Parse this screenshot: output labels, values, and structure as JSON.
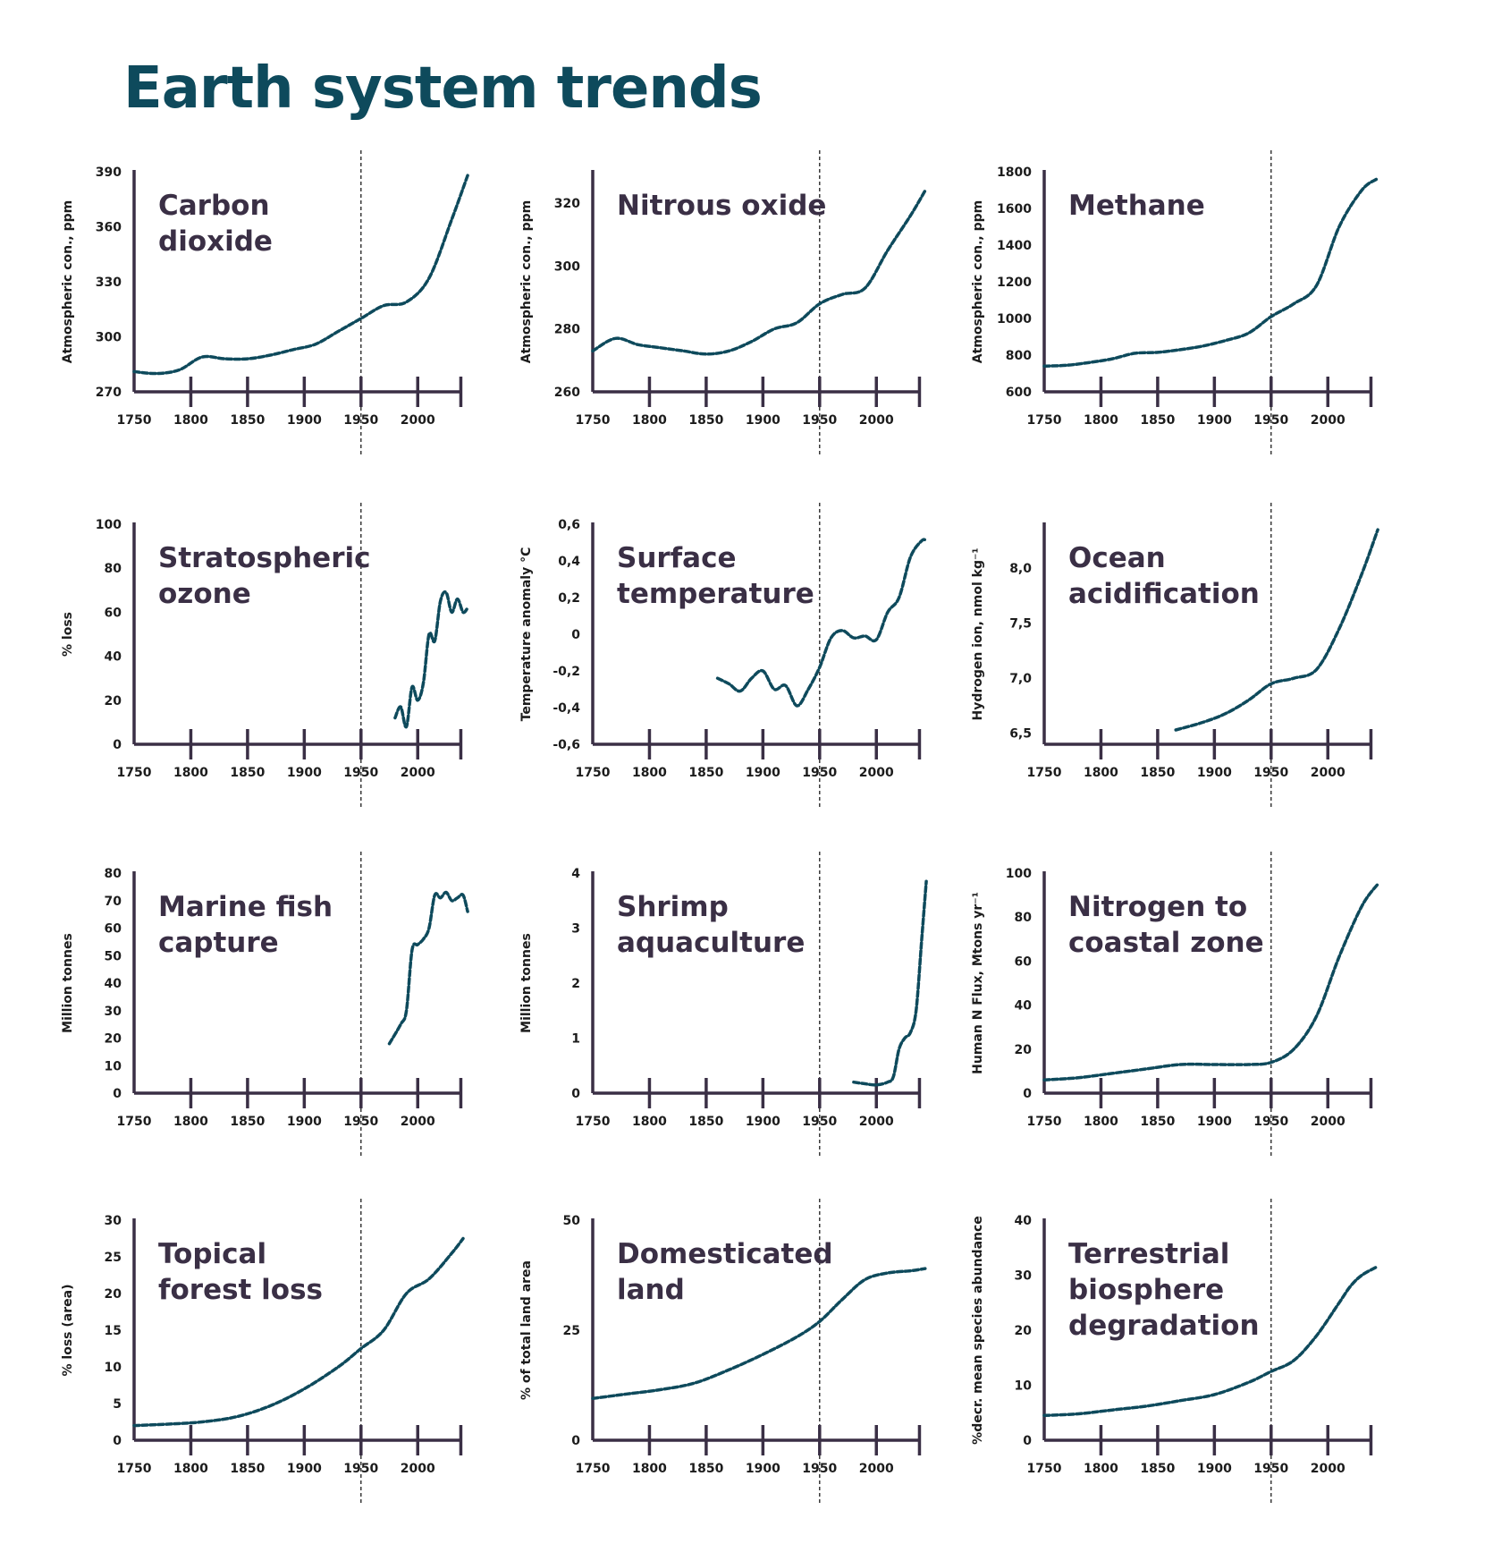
{
  "title": "Earth system trends",
  "colors": {
    "title": "#0e4a5c",
    "line": "#0e4a5c",
    "axis": "#3a2f45",
    "panel_title": "#3a2f45",
    "marker": "#1c1c1c"
  },
  "x_ticks": [
    1750,
    1800,
    1850,
    1900,
    1950,
    2000
  ],
  "marker_year": 1950,
  "chart_data": [
    {
      "type": "line",
      "title": [
        "Carbon",
        "dioxide"
      ],
      "ylabel": "Atmospheric con., ppm",
      "ylim": [
        270,
        390
      ],
      "yticks": [
        270,
        300,
        330,
        360,
        390
      ],
      "ytick_labels": [
        "270",
        "300",
        "330",
        "360",
        "390"
      ],
      "xlim": [
        1750,
        2040
      ],
      "x": [
        1750,
        1770,
        1790,
        1810,
        1830,
        1850,
        1870,
        1890,
        1910,
        1930,
        1950,
        1970,
        1990,
        2010,
        2030,
        2044
      ],
      "y": [
        281,
        280,
        282,
        289,
        288,
        288,
        290,
        293,
        296,
        303,
        310,
        317,
        319,
        332,
        364,
        388
      ]
    },
    {
      "type": "line",
      "title": [
        "Nitrous oxide"
      ],
      "ylabel": "Atmospheric con., ppm",
      "ylim": [
        260,
        330
      ],
      "yticks": [
        260,
        280,
        300,
        320
      ],
      "ytick_labels": [
        "260",
        "280",
        "300",
        "320"
      ],
      "xlim": [
        1750,
        2040
      ],
      "x": [
        1750,
        1770,
        1790,
        1810,
        1830,
        1850,
        1870,
        1890,
        1910,
        1930,
        1950,
        1970,
        1990,
        2010,
        2030,
        2043
      ],
      "y": [
        273,
        277,
        275,
        274,
        273,
        272,
        273,
        276,
        280,
        282,
        288,
        291,
        293,
        305,
        316,
        324
      ]
    },
    {
      "type": "line",
      "title": [
        "Methane"
      ],
      "ylabel": "Atmospheric con., ppm",
      "ylim": [
        600,
        1800
      ],
      "yticks": [
        600,
        800,
        1000,
        1200,
        1400,
        1600,
        1800
      ],
      "ytick_labels": [
        "600",
        "800",
        "1000",
        "1200",
        "1400",
        "1600",
        "1800"
      ],
      "xlim": [
        1750,
        2040
      ],
      "x": [
        1750,
        1770,
        1790,
        1810,
        1830,
        1850,
        1870,
        1890,
        1910,
        1930,
        1950,
        1970,
        1990,
        2010,
        2030,
        2043
      ],
      "y": [
        740,
        745,
        760,
        780,
        810,
        815,
        830,
        850,
        880,
        920,
        1010,
        1080,
        1180,
        1500,
        1700,
        1760
      ]
    },
    {
      "type": "line",
      "title": [
        "Stratospheric",
        "ozone"
      ],
      "ylabel": "% loss",
      "ylim": [
        0,
        100
      ],
      "yticks": [
        0,
        20,
        40,
        60,
        80,
        100
      ],
      "ytick_labels": [
        "0",
        "20",
        "40",
        "60",
        "80",
        "100"
      ],
      "xlim": [
        1750,
        2040
      ],
      "x": [
        1980,
        1985,
        1990,
        1995,
        2000,
        2005,
        2010,
        2015,
        2020,
        2025,
        2030,
        2035,
        2040,
        2044
      ],
      "y": [
        12,
        17,
        8,
        26,
        20,
        28,
        50,
        47,
        65,
        69,
        60,
        66,
        60,
        62
      ]
    },
    {
      "type": "line",
      "title": [
        "Surface",
        "temperature"
      ],
      "ylabel": "Temperature anomaly °C",
      "ylim": [
        -0.6,
        0.6
      ],
      "yticks": [
        -0.6,
        -0.4,
        -0.2,
        0,
        0.2,
        0.4,
        0.6
      ],
      "ytick_labels": [
        "-0,6",
        "-0,4",
        "-0,2",
        "0",
        "0,2",
        "0,4",
        "0,6"
      ],
      "xlim": [
        1750,
        2040
      ],
      "x": [
        1860,
        1870,
        1880,
        1890,
        1900,
        1910,
        1920,
        1930,
        1940,
        1950,
        1960,
        1970,
        1980,
        1990,
        2000,
        2010,
        2020,
        2030,
        2040,
        2044
      ],
      "y": [
        -0.24,
        -0.27,
        -0.31,
        -0.24,
        -0.2,
        -0.3,
        -0.28,
        -0.39,
        -0.3,
        -0.18,
        -0.02,
        0.02,
        -0.02,
        -0.01,
        -0.03,
        0.12,
        0.2,
        0.42,
        0.51,
        0.51
      ]
    },
    {
      "type": "line",
      "title": [
        "Ocean",
        "acidification"
      ],
      "ylabel": "Hydrogen ion, nmol kg⁻¹",
      "ylim": [
        6.4,
        8.4
      ],
      "yticks": [
        6.5,
        7.0,
        7.5,
        8.0
      ],
      "ytick_labels": [
        "6,5",
        "7,0",
        "7,5",
        "8,0"
      ],
      "xlim": [
        1750,
        2040
      ],
      "x": [
        1866,
        1890,
        1910,
        1930,
        1950,
        1970,
        1990,
        2010,
        2030,
        2044
      ],
      "y": [
        6.53,
        6.6,
        6.68,
        6.8,
        6.95,
        7.0,
        7.08,
        7.45,
        7.95,
        8.35
      ]
    },
    {
      "type": "line",
      "title": [
        "Marine fish",
        "capture"
      ],
      "ylabel": "Million tonnes",
      "ylim": [
        0,
        80
      ],
      "yticks": [
        0,
        10,
        20,
        30,
        40,
        50,
        60,
        70,
        80
      ],
      "ytick_labels": [
        "0",
        "10",
        "20",
        "30",
        "40",
        "50",
        "60",
        "70",
        "80"
      ],
      "xlim": [
        1750,
        2040
      ],
      "x": [
        1975,
        1985,
        1990,
        1995,
        2000,
        2005,
        2010,
        2015,
        2020,
        2025,
        2030,
        2035,
        2040,
        2044
      ],
      "y": [
        18,
        25,
        30,
        52,
        54,
        56,
        60,
        72,
        71,
        73,
        70,
        71,
        72,
        66
      ]
    },
    {
      "type": "line",
      "title": [
        "Shrimp",
        "aquaculture"
      ],
      "ylabel": "Million tonnes",
      "ylim": [
        0,
        4
      ],
      "yticks": [
        0,
        1,
        2,
        3,
        4
      ],
      "ytick_labels": [
        "0",
        "1",
        "2",
        "3",
        "4"
      ],
      "xlim": [
        1750,
        2040
      ],
      "x": [
        1980,
        1990,
        2000,
        2010,
        2015,
        2020,
        2025,
        2030,
        2035,
        2040,
        2044
      ],
      "y": [
        0.2,
        0.17,
        0.15,
        0.2,
        0.3,
        0.8,
        1.0,
        1.1,
        1.5,
        2.8,
        3.85
      ]
    },
    {
      "type": "line",
      "title": [
        "Nitrogen to",
        "coastal zone"
      ],
      "ylabel": "Human N Flux, Mtons yr⁻¹",
      "ylim": [
        0,
        100
      ],
      "yticks": [
        0,
        20,
        40,
        60,
        80,
        100
      ],
      "ytick_labels": [
        "0",
        "20",
        "40",
        "60",
        "80",
        "100"
      ],
      "xlim": [
        1750,
        2040
      ],
      "x": [
        1750,
        1780,
        1810,
        1840,
        1870,
        1900,
        1930,
        1950,
        1970,
        1990,
        2010,
        2030,
        2044
      ],
      "y": [
        6,
        7,
        9,
        11,
        13,
        13,
        13,
        14,
        20,
        35,
        62,
        85,
        95
      ]
    },
    {
      "type": "line",
      "title": [
        "Topical",
        "forest loss"
      ],
      "ylabel": "% loss (area)",
      "ylim": [
        0,
        30
      ],
      "yticks": [
        0,
        5,
        10,
        15,
        20,
        25,
        30
      ],
      "ytick_labels": [
        "0",
        "5",
        "10",
        "15",
        "20",
        "25",
        "30"
      ],
      "xlim": [
        1750,
        2040
      ],
      "x": [
        1750,
        1780,
        1810,
        1840,
        1870,
        1900,
        1930,
        1950,
        1970,
        1990,
        2010,
        2030,
        2040
      ],
      "y": [
        2,
        2.2,
        2.5,
        3.2,
        4.7,
        7,
        10,
        12.5,
        15,
        20,
        22,
        25.5,
        27.5
      ]
    },
    {
      "type": "line",
      "title": [
        "Domesticated",
        "land"
      ],
      "ylabel": "% of total land area",
      "ylim": [
        0,
        50
      ],
      "yticks": [
        0,
        25,
        50
      ],
      "ytick_labels": [
        "0",
        "25",
        "50"
      ],
      "xlim": [
        1750,
        2040
      ],
      "x": [
        1750,
        1780,
        1810,
        1840,
        1870,
        1900,
        1930,
        1950,
        1970,
        1990,
        2010,
        2030,
        2043
      ],
      "y": [
        9.5,
        10.5,
        11.5,
        13,
        16,
        19.5,
        23.5,
        27,
        32,
        36.5,
        38,
        38.5,
        39
      ]
    },
    {
      "type": "line",
      "title": [
        "Terrestrial",
        "biosphere",
        "degradation"
      ],
      "ylabel": "%decr. mean species abundance",
      "ylim": [
        0,
        40
      ],
      "yticks": [
        0,
        10,
        20,
        30,
        40
      ],
      "ytick_labels": [
        "0",
        "10",
        "20",
        "30",
        "40"
      ],
      "xlim": [
        1750,
        2040
      ],
      "x": [
        1750,
        1780,
        1810,
        1840,
        1870,
        1900,
        1930,
        1950,
        1970,
        1990,
        2010,
        2020,
        2030,
        2043
      ],
      "y": [
        4.5,
        4.8,
        5.5,
        6.2,
        7.2,
        8.3,
        10.5,
        12.5,
        14.5,
        19,
        25,
        28,
        30,
        31.5
      ]
    }
  ]
}
